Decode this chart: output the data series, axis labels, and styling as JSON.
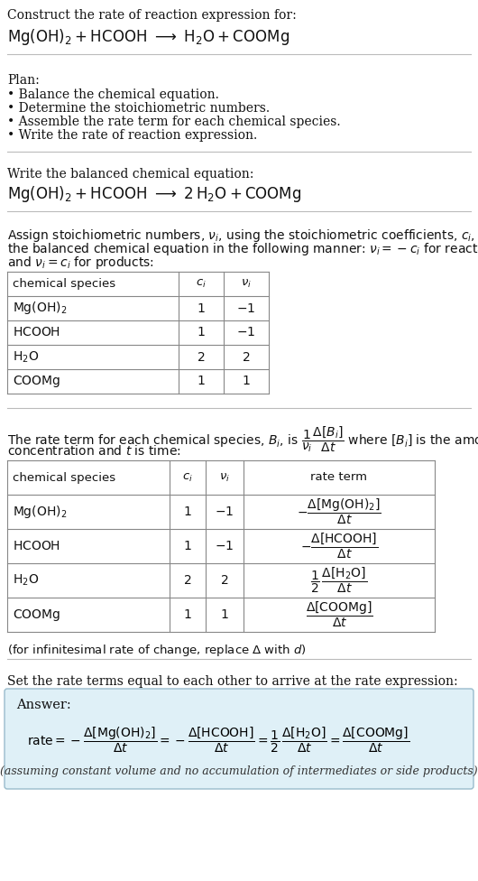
{
  "bg_color": "#ffffff",
  "sep_color": "#bbbbbb",
  "answer_box_color": "#dff0f7",
  "answer_box_border": "#99bbcc",
  "title_text": "Construct the rate of reaction expression for:",
  "plan_title": "Plan:",
  "plan_items": [
    "• Balance the chemical equation.",
    "• Determine the stoichiometric numbers.",
    "• Assemble the rate term for each chemical species.",
    "• Write the rate of reaction expression."
  ],
  "balanced_label": "Write the balanced chemical equation:",
  "stoich_intro_lines": [
    "Assign stoichiometric numbers, $\\nu_i$, using the stoichiometric coefficients, $c_i$, from",
    "the balanced chemical equation in the following manner: $\\nu_i = -c_i$ for reactants",
    "and $\\nu_i = c_i$ for products:"
  ],
  "rate_intro_line1": "The rate term for each chemical species, $B_i$, is $\\dfrac{1}{\\nu_i}\\dfrac{\\Delta[B_i]}{\\Delta t}$ where $[B_i]$ is the amount",
  "rate_intro_line2": "concentration and $t$ is time:",
  "infinitesimal_note": "(for infinitesimal rate of change, replace $\\Delta$ with $d$)",
  "answer_intro": "Set the rate terms equal to each other to arrive at the rate expression:",
  "answer_label": "Answer:",
  "answer_note": "(assuming constant volume and no accumulation of intermediates or side products)"
}
